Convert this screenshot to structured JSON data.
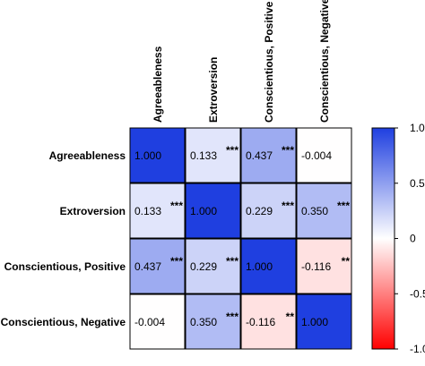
{
  "chart_data": {
    "type": "heatmap",
    "rows": [
      "Agreeableness",
      "Extroversion",
      "Conscientious, Positive",
      "Conscientious, Negative"
    ],
    "columns": [
      "Agreeableness",
      "Extroversion",
      "Conscientious, Positive",
      "Conscientious, Negative"
    ],
    "values": [
      [
        1.0,
        0.133,
        0.437,
        -0.004
      ],
      [
        0.133,
        1.0,
        0.229,
        0.35
      ],
      [
        0.437,
        0.229,
        1.0,
        -0.116
      ],
      [
        -0.004,
        0.35,
        -0.116,
        1.0
      ]
    ],
    "labels": [
      [
        "1.000",
        "0.133",
        "0.437",
        "-0.004"
      ],
      [
        "0.133",
        "1.000",
        "0.229",
        "0.350"
      ],
      [
        "0.437",
        "0.229",
        "1.000",
        "-0.116"
      ],
      [
        "-0.004",
        "0.350",
        "-0.116",
        "1.000"
      ]
    ],
    "significance": [
      [
        "",
        "***",
        "***",
        ""
      ],
      [
        "***",
        "",
        "***",
        "***"
      ],
      [
        "***",
        "***",
        "",
        "**"
      ],
      [
        "",
        "***",
        "**",
        ""
      ]
    ],
    "colorscale": {
      "min": -1.0,
      "max": 1.0,
      "low_color": "#ff0000",
      "mid_color": "#ffffff",
      "high_color": "#0000ff",
      "ticks": [
        "1.0",
        "0.5",
        "0",
        "-0.5",
        "-1.0"
      ],
      "tick_values": [
        1.0,
        0.5,
        0,
        -0.5,
        -1.0
      ]
    }
  }
}
